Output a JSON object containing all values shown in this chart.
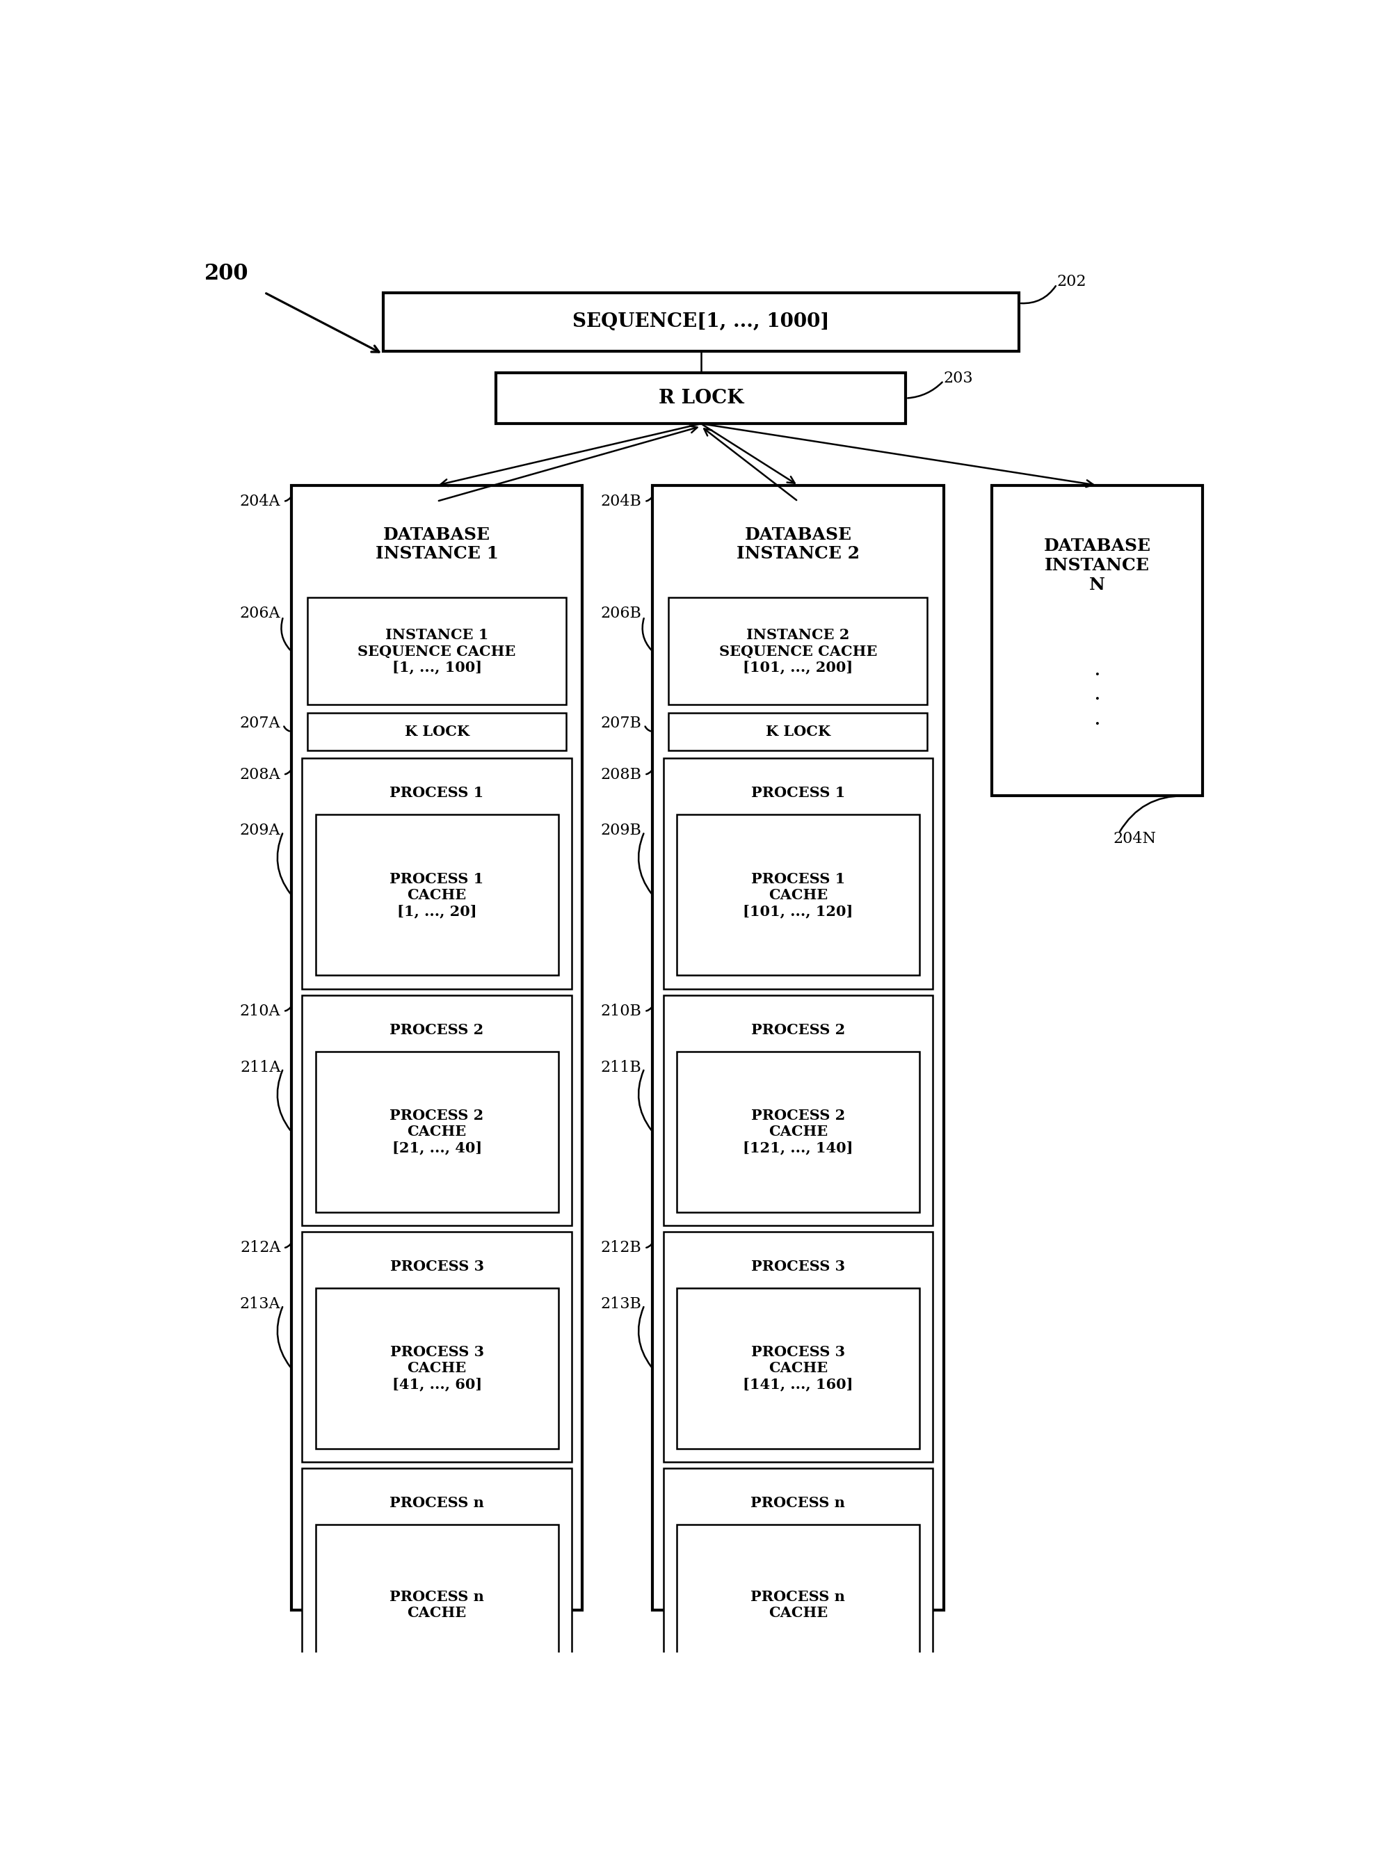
{
  "bg_color": "#ffffff",
  "fig_label": "200",
  "seq_box": {
    "text": "SEQUENCE[1, ..., 1000]",
    "label": "202"
  },
  "rlock_box": {
    "text": "R LOCK",
    "label": "203"
  },
  "inst1": {
    "label_outer": "204A",
    "title": "DATABASE\nINSTANCE 1",
    "cache_label": "206A",
    "cache_text": "INSTANCE 1\nSEQUENCE CACHE\n[1, ..., 100]",
    "klock_label": "207A",
    "processes": [
      {
        "outer_label": "208A",
        "title": "PROCESS 1",
        "cache_label": "209A",
        "cache_text": "PROCESS 1\nCACHE\n[1, ..., 20]"
      },
      {
        "outer_label": "210A",
        "title": "PROCESS 2",
        "cache_label": "211A",
        "cache_text": "PROCESS 2\nCACHE\n[21, ..., 40]"
      },
      {
        "outer_label": "212A",
        "title": "PROCESS 3",
        "cache_label": "213A",
        "cache_text": "PROCESS 3\nCACHE\n[41, ..., 60]"
      },
      {
        "outer_label": "",
        "title": "PROCESS n",
        "cache_label": "",
        "cache_text": "PROCESS n\nCACHE"
      }
    ]
  },
  "inst2": {
    "label_outer": "204B",
    "title": "DATABASE\nINSTANCE 2",
    "cache_label": "206B",
    "cache_text": "INSTANCE 2\nSEQUENCE CACHE\n[101, ..., 200]",
    "klock_label": "207B",
    "processes": [
      {
        "outer_label": "208B",
        "title": "PROCESS 1",
        "cache_label": "209B",
        "cache_text": "PROCESS 1\nCACHE\n[101, ..., 120]"
      },
      {
        "outer_label": "210B",
        "title": "PROCESS 2",
        "cache_label": "211B",
        "cache_text": "PROCESS 2\nCACHE\n[121, ..., 140]"
      },
      {
        "outer_label": "212B",
        "title": "PROCESS 3",
        "cache_label": "213B",
        "cache_text": "PROCESS 3\nCACHE\n[141, ..., 160]"
      },
      {
        "outer_label": "",
        "title": "PROCESS n",
        "cache_label": "",
        "cache_text": "PROCESS n\nCACHE"
      }
    ]
  },
  "instN": {
    "label_outer": "204N",
    "title": "DATABASE\nINSTANCE\nN",
    "dots": ".\n.\n."
  },
  "font_size_title": 22,
  "font_size_seq": 20,
  "font_size_rlock": 20,
  "font_size_inst_title": 18,
  "font_size_box": 15,
  "font_size_label": 16,
  "lw_thick": 3.0,
  "lw_thin": 1.8
}
